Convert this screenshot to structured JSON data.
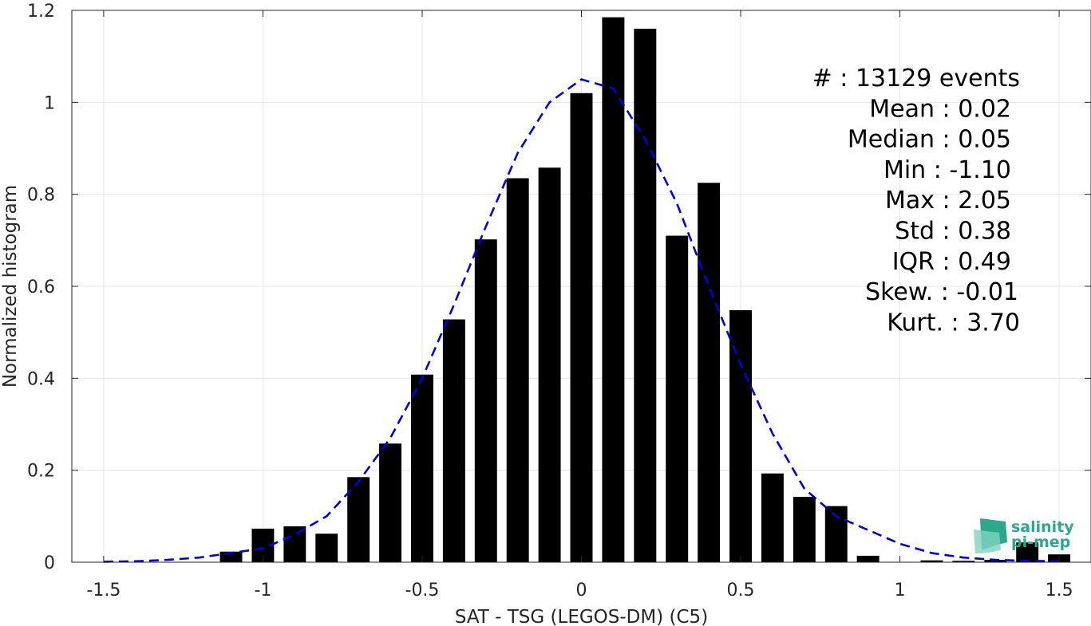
{
  "chart_data": {
    "type": "bar",
    "xlabel": "SAT - TSG (LEGOS-DM) (C5)",
    "ylabel": "Normalized histogram",
    "xlim": [
      -1.6,
      1.6
    ],
    "ylim": [
      0,
      1.2
    ],
    "xticks": [
      "-1.5",
      "-1",
      "-0.5",
      "0",
      "0.5",
      "1",
      "1.5"
    ],
    "xtick_values": [
      -1.5,
      -1,
      -0.5,
      0,
      0.5,
      1,
      1.5
    ],
    "yticks": [
      "0",
      "0.2",
      "0.4",
      "0.6",
      "0.8",
      "1",
      "1.2"
    ],
    "ytick_values": [
      0,
      0.2,
      0.4,
      0.6,
      0.8,
      1.0,
      1.2
    ],
    "grid": true,
    "bar_color": "#000000",
    "bar_width": 0.07,
    "bars": [
      {
        "x": -1.1,
        "y": 0.023
      },
      {
        "x": -1.0,
        "y": 0.073
      },
      {
        "x": -0.9,
        "y": 0.078
      },
      {
        "x": -0.8,
        "y": 0.062
      },
      {
        "x": -0.7,
        "y": 0.185
      },
      {
        "x": -0.6,
        "y": 0.258
      },
      {
        "x": -0.5,
        "y": 0.408
      },
      {
        "x": -0.4,
        "y": 0.528
      },
      {
        "x": -0.3,
        "y": 0.702
      },
      {
        "x": -0.2,
        "y": 0.835
      },
      {
        "x": -0.1,
        "y": 0.858
      },
      {
        "x": 0.0,
        "y": 1.02
      },
      {
        "x": 0.1,
        "y": 1.185
      },
      {
        "x": 0.2,
        "y": 1.16
      },
      {
        "x": 0.3,
        "y": 0.71
      },
      {
        "x": 0.4,
        "y": 0.825
      },
      {
        "x": 0.5,
        "y": 0.548
      },
      {
        "x": 0.6,
        "y": 0.193
      },
      {
        "x": 0.7,
        "y": 0.142
      },
      {
        "x": 0.8,
        "y": 0.122
      },
      {
        "x": 0.9,
        "y": 0.014
      },
      {
        "x": 1.1,
        "y": 0.004
      },
      {
        "x": 1.2,
        "y": 0.003
      },
      {
        "x": 1.3,
        "y": 0.005
      },
      {
        "x": 1.4,
        "y": 0.043
      },
      {
        "x": 1.5,
        "y": 0.017
      }
    ],
    "fit_curve": {
      "style": "dashed",
      "color": "#0000e6",
      "x": [
        -1.5,
        -1.4,
        -1.3,
        -1.2,
        -1.1,
        -1.0,
        -0.9,
        -0.8,
        -0.7,
        -0.6,
        -0.5,
        -0.4,
        -0.3,
        -0.2,
        -0.1,
        0.0,
        0.1,
        0.2,
        0.3,
        0.4,
        0.5,
        0.6,
        0.7,
        0.8,
        0.9,
        1.0,
        1.1,
        1.2,
        1.3,
        1.4,
        1.5
      ],
      "y": [
        0.001,
        0.002,
        0.005,
        0.01,
        0.02,
        0.03,
        0.06,
        0.1,
        0.175,
        0.27,
        0.4,
        0.56,
        0.73,
        0.89,
        1.0,
        1.05,
        1.03,
        0.92,
        0.78,
        0.6,
        0.43,
        0.28,
        0.16,
        0.1,
        0.07,
        0.04,
        0.02,
        0.01,
        0.005,
        0.003,
        0.002
      ]
    },
    "stats": [
      {
        "label": "#  : 13129 events"
      },
      {
        "label": "Mean : 0.02"
      },
      {
        "label": "Median : 0.05"
      },
      {
        "label": "Min : -1.10"
      },
      {
        "label": "Max : 2.05"
      },
      {
        "label": "Std : 0.38"
      },
      {
        "label": "IQR : 0.49"
      },
      {
        "label": "Skew. : -0.01"
      },
      {
        "label": "Kurt. : 3.70"
      }
    ]
  },
  "logo": {
    "line1": "salinity",
    "line2": "pi-mep",
    "color_dark": "#2aa98f",
    "color_light": "#7fd3bf"
  }
}
